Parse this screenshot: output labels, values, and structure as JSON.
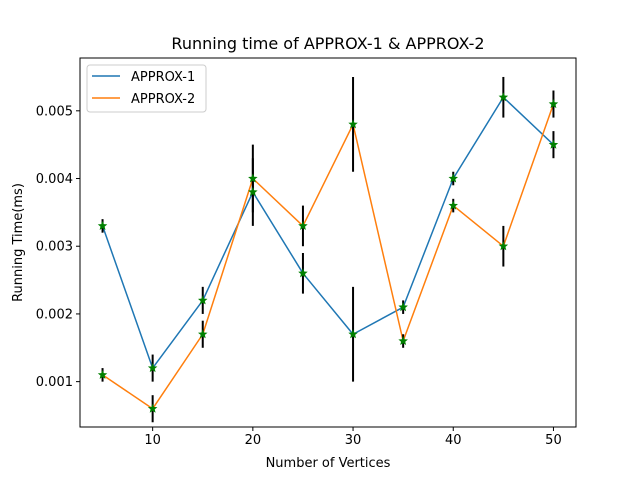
{
  "chart_data": {
    "type": "line",
    "title": "Running time of APPROX-1 & APPROX-2",
    "xlabel": "Number of Vertices",
    "ylabel": "Running Time(ms)",
    "x": [
      5,
      10,
      15,
      20,
      25,
      30,
      35,
      40,
      45,
      50
    ],
    "xlim": [
      2.75,
      52.25
    ],
    "ylim": [
      0.00033,
      0.00578
    ],
    "xticks": [
      10,
      20,
      30,
      40,
      50
    ],
    "xtick_labels": [
      "10",
      "20",
      "30",
      "40",
      "50"
    ],
    "yticks": [
      0.001,
      0.002,
      0.003,
      0.004,
      0.005
    ],
    "ytick_labels": [
      "0.001",
      "0.002",
      "0.003",
      "0.004",
      "0.005"
    ],
    "grid": false,
    "legend_position": "top-left",
    "marker": "star",
    "marker_color": "#008000",
    "errorbar_color": "#000000",
    "series": [
      {
        "name": "APPROX-1",
        "color": "#1f77b4",
        "values": [
          0.0033,
          0.0012,
          0.0022,
          0.0038,
          0.0026,
          0.0017,
          0.0021,
          0.004,
          0.0052,
          0.0045
        ],
        "errors": [
          0.0001,
          0.0002,
          0.0002,
          0.0005,
          0.0003,
          0.0007,
          0.0001,
          0.0001,
          0.0003,
          0.0002
        ]
      },
      {
        "name": "APPROX-2",
        "color": "#ff7f0e",
        "values": [
          0.0011,
          0.0006,
          0.0017,
          0.004,
          0.0033,
          0.0048,
          0.0016,
          0.0036,
          0.003,
          0.0051
        ],
        "errors": [
          0.0001,
          0.0002,
          0.0002,
          0.0005,
          0.0003,
          0.0007,
          0.0001,
          0.0001,
          0.0003,
          0.0002
        ]
      }
    ]
  }
}
